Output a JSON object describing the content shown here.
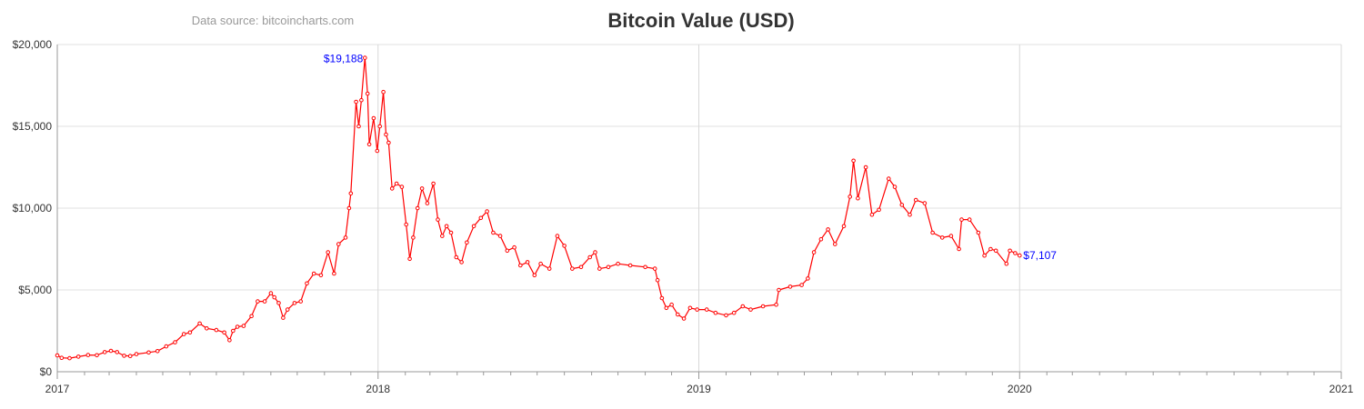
{
  "chart_data": {
    "type": "line",
    "title": "Bitcoin Value (USD)",
    "source": "Data source: bitcoincharts.com",
    "xlabel": "",
    "ylabel": "",
    "xlim": [
      "2017-01-01",
      "2021-01-01"
    ],
    "ylim": [
      0,
      20000
    ],
    "y_ticks": [
      0,
      5000,
      10000,
      15000,
      20000
    ],
    "y_tick_labels": [
      "$0",
      "$5,000",
      "$10,000",
      "$15,000",
      "$20,000"
    ],
    "x_ticks": [
      "2017-01-01",
      "2018-01-01",
      "2019-01-01",
      "2020-01-01",
      "2021-01-01"
    ],
    "x_tick_labels": [
      "2017",
      "2018",
      "2019",
      "2020",
      "2021"
    ],
    "grid": true,
    "legend": "none",
    "colors": {
      "line": "#ff0000",
      "annotation": "#0000ff"
    },
    "annotations": [
      {
        "date": "2017-12-17",
        "value": 19188,
        "text": "$19,188"
      },
      {
        "date": "2020-01-01",
        "value": 7107,
        "text": "$7,107"
      }
    ],
    "series": [
      {
        "points": [
          [
            "2017-01-01",
            1000
          ],
          [
            "2017-01-06",
            850
          ],
          [
            "2017-01-15",
            830
          ],
          [
            "2017-01-25",
            920
          ],
          [
            "2017-02-05",
            1020
          ],
          [
            "2017-02-15",
            1010
          ],
          [
            "2017-02-24",
            1200
          ],
          [
            "2017-03-03",
            1280
          ],
          [
            "2017-03-10",
            1200
          ],
          [
            "2017-03-18",
            980
          ],
          [
            "2017-03-25",
            960
          ],
          [
            "2017-04-01",
            1080
          ],
          [
            "2017-04-15",
            1180
          ],
          [
            "2017-04-25",
            1260
          ],
          [
            "2017-05-05",
            1550
          ],
          [
            "2017-05-15",
            1800
          ],
          [
            "2017-05-25",
            2300
          ],
          [
            "2017-06-01",
            2400
          ],
          [
            "2017-06-12",
            2950
          ],
          [
            "2017-06-20",
            2650
          ],
          [
            "2017-07-01",
            2550
          ],
          [
            "2017-07-10",
            2400
          ],
          [
            "2017-07-16",
            1930
          ],
          [
            "2017-07-20",
            2500
          ],
          [
            "2017-07-25",
            2750
          ],
          [
            "2017-08-01",
            2800
          ],
          [
            "2017-08-10",
            3400
          ],
          [
            "2017-08-17",
            4300
          ],
          [
            "2017-08-25",
            4300
          ],
          [
            "2017-09-01",
            4800
          ],
          [
            "2017-09-05",
            4550
          ],
          [
            "2017-09-10",
            4200
          ],
          [
            "2017-09-15",
            3300
          ],
          [
            "2017-09-20",
            3800
          ],
          [
            "2017-09-28",
            4200
          ],
          [
            "2017-10-05",
            4300
          ],
          [
            "2017-10-12",
            5400
          ],
          [
            "2017-10-20",
            6000
          ],
          [
            "2017-10-28",
            5900
          ],
          [
            "2017-11-05",
            7300
          ],
          [
            "2017-11-12",
            6000
          ],
          [
            "2017-11-17",
            7800
          ],
          [
            "2017-11-25",
            8200
          ],
          [
            "2017-11-29",
            10000
          ],
          [
            "2017-12-01",
            10900
          ],
          [
            "2017-12-07",
            16500
          ],
          [
            "2017-12-10",
            15000
          ],
          [
            "2017-12-13",
            16600
          ],
          [
            "2017-12-17",
            19188
          ],
          [
            "2017-12-20",
            17000
          ],
          [
            "2017-12-22",
            13900
          ],
          [
            "2017-12-27",
            15500
          ],
          [
            "2017-12-31",
            13500
          ],
          [
            "2018-01-03",
            15000
          ],
          [
            "2018-01-07",
            17100
          ],
          [
            "2018-01-10",
            14500
          ],
          [
            "2018-01-13",
            14000
          ],
          [
            "2018-01-17",
            11200
          ],
          [
            "2018-01-22",
            11500
          ],
          [
            "2018-01-28",
            11300
          ],
          [
            "2018-02-02",
            9000
          ],
          [
            "2018-02-06",
            6900
          ],
          [
            "2018-02-10",
            8200
          ],
          [
            "2018-02-15",
            10000
          ],
          [
            "2018-02-20",
            11200
          ],
          [
            "2018-02-26",
            10300
          ],
          [
            "2018-03-05",
            11500
          ],
          [
            "2018-03-10",
            9300
          ],
          [
            "2018-03-15",
            8300
          ],
          [
            "2018-03-20",
            8900
          ],
          [
            "2018-03-25",
            8500
          ],
          [
            "2018-03-31",
            7000
          ],
          [
            "2018-04-06",
            6700
          ],
          [
            "2018-04-12",
            7900
          ],
          [
            "2018-04-20",
            8900
          ],
          [
            "2018-04-28",
            9400
          ],
          [
            "2018-05-05",
            9800
          ],
          [
            "2018-05-12",
            8500
          ],
          [
            "2018-05-20",
            8300
          ],
          [
            "2018-05-28",
            7400
          ],
          [
            "2018-06-05",
            7600
          ],
          [
            "2018-06-12",
            6500
          ],
          [
            "2018-06-20",
            6700
          ],
          [
            "2018-06-28",
            5900
          ],
          [
            "2018-07-05",
            6600
          ],
          [
            "2018-07-15",
            6300
          ],
          [
            "2018-07-24",
            8300
          ],
          [
            "2018-08-01",
            7700
          ],
          [
            "2018-08-10",
            6300
          ],
          [
            "2018-08-20",
            6400
          ],
          [
            "2018-08-30",
            7000
          ],
          [
            "2018-09-05",
            7300
          ],
          [
            "2018-09-10",
            6300
          ],
          [
            "2018-09-20",
            6400
          ],
          [
            "2018-10-01",
            6600
          ],
          [
            "2018-10-15",
            6500
          ],
          [
            "2018-11-01",
            6400
          ],
          [
            "2018-11-12",
            6300
          ],
          [
            "2018-11-15",
            5600
          ],
          [
            "2018-11-20",
            4500
          ],
          [
            "2018-11-25",
            3900
          ],
          [
            "2018-12-01",
            4100
          ],
          [
            "2018-12-08",
            3500
          ],
          [
            "2018-12-15",
            3250
          ],
          [
            "2018-12-22",
            3900
          ],
          [
            "2018-12-30",
            3800
          ],
          [
            "2019-01-10",
            3800
          ],
          [
            "2019-01-20",
            3600
          ],
          [
            "2019-02-01",
            3450
          ],
          [
            "2019-02-10",
            3600
          ],
          [
            "2019-02-20",
            4000
          ],
          [
            "2019-03-01",
            3800
          ],
          [
            "2019-03-15",
            4000
          ],
          [
            "2019-03-30",
            4100
          ],
          [
            "2019-04-02",
            5000
          ],
          [
            "2019-04-15",
            5200
          ],
          [
            "2019-04-28",
            5300
          ],
          [
            "2019-05-05",
            5700
          ],
          [
            "2019-05-12",
            7300
          ],
          [
            "2019-05-20",
            8100
          ],
          [
            "2019-05-28",
            8700
          ],
          [
            "2019-06-05",
            7800
          ],
          [
            "2019-06-15",
            8900
          ],
          [
            "2019-06-22",
            10700
          ],
          [
            "2019-06-26",
            12900
          ],
          [
            "2019-07-01",
            10600
          ],
          [
            "2019-07-10",
            12500
          ],
          [
            "2019-07-17",
            9600
          ],
          [
            "2019-07-25",
            9900
          ],
          [
            "2019-08-05",
            11800
          ],
          [
            "2019-08-12",
            11300
          ],
          [
            "2019-08-20",
            10200
          ],
          [
            "2019-08-29",
            9600
          ],
          [
            "2019-09-05",
            10500
          ],
          [
            "2019-09-15",
            10300
          ],
          [
            "2019-09-24",
            8500
          ],
          [
            "2019-10-05",
            8200
          ],
          [
            "2019-10-15",
            8300
          ],
          [
            "2019-10-24",
            7500
          ],
          [
            "2019-10-27",
            9300
          ],
          [
            "2019-11-05",
            9300
          ],
          [
            "2019-11-15",
            8500
          ],
          [
            "2019-11-22",
            7100
          ],
          [
            "2019-11-29",
            7500
          ],
          [
            "2019-12-05",
            7400
          ],
          [
            "2019-12-17",
            6600
          ],
          [
            "2019-12-21",
            7400
          ],
          [
            "2019-12-27",
            7250
          ],
          [
            "2020-01-01",
            7107
          ]
        ]
      }
    ]
  }
}
